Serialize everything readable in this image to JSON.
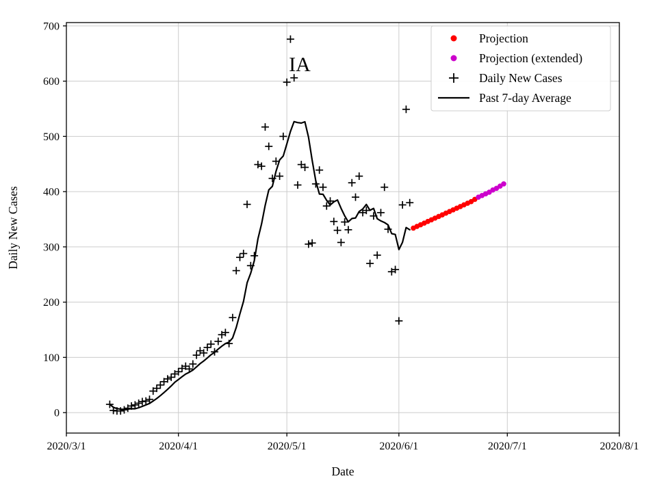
{
  "figure": {
    "title": "IA",
    "xlabel": "Date",
    "ylabel": "Daily New Cases"
  },
  "chart_data": {
    "type": "line",
    "title": "IA",
    "xlabel": "Date",
    "ylabel": "Daily New Cases",
    "grid": true,
    "grid_color": "#cccccc",
    "axis_color": "#000000",
    "legend_position": "upper right",
    "x_axis": {
      "start": "2020/3/1",
      "end": "2020/8/1",
      "ticks": [
        "2020/3/1",
        "2020/4/1",
        "2020/5/1",
        "2020/6/1",
        "2020/7/1",
        "2020/8/1"
      ]
    },
    "y_axis": {
      "min": -37,
      "max": 706,
      "ticks": [
        0,
        100,
        200,
        300,
        400,
        500,
        600,
        700
      ]
    },
    "legend_order": [
      "Projection",
      "Projection (extended)",
      "Daily New Cases",
      "Past 7-day Average"
    ],
    "series": [
      {
        "name": "Daily New Cases",
        "type": "scatter",
        "marker": "plus",
        "color": "#000000",
        "start_date": "2020/3/13",
        "values": [
          15,
          4,
          3,
          3,
          5,
          8,
          12,
          14,
          17,
          20,
          21,
          24,
          39,
          44,
          50,
          56,
          61,
          64,
          70,
          74,
          80,
          84,
          79,
          88,
          104,
          112,
          108,
          118,
          124,
          110,
          129,
          141,
          145,
          125,
          172,
          257,
          281,
          288,
          377,
          266,
          284,
          449,
          446,
          517,
          482,
          424,
          455,
          428,
          500,
          598,
          676,
          606,
          412,
          449,
          444,
          305,
          307,
          414,
          439,
          408,
          374,
          383,
          346,
          330,
          308,
          345,
          331,
          416,
          390,
          428,
          362,
          366,
          270,
          356,
          285,
          362,
          408,
          332,
          255,
          259,
          166,
          376,
          549,
          380
        ]
      },
      {
        "name": "Past 7-day Average",
        "type": "line",
        "color": "#000000",
        "derived_from": "Daily New Cases",
        "window": 7
      },
      {
        "name": "Projection",
        "type": "scatter",
        "marker": "circle",
        "color": "#ff0000",
        "start_date": "2020/6/5",
        "values": [
          334,
          337,
          340,
          343,
          346,
          349,
          352,
          355,
          358,
          361,
          364,
          367,
          370,
          373,
          376,
          379,
          382,
          386
        ]
      },
      {
        "name": "Projection (extended)",
        "type": "scatter",
        "marker": "circle",
        "color": "#cc00cc",
        "start_date": "2020/6/23",
        "values": [
          390,
          393,
          396,
          399,
          403,
          406,
          410,
          414
        ]
      }
    ]
  }
}
